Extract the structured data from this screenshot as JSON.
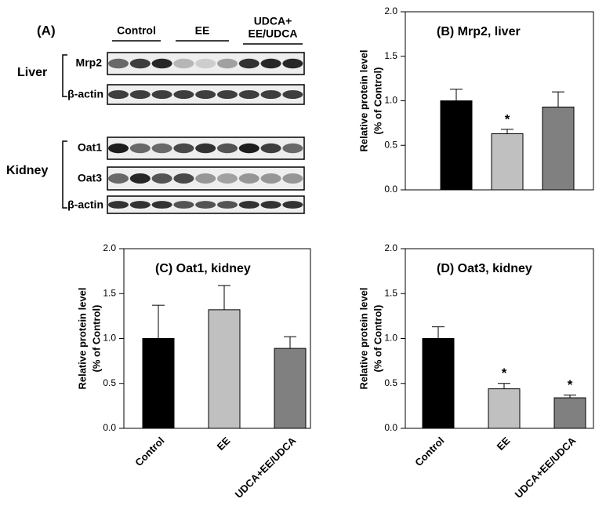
{
  "blot": {
    "label": "(A)",
    "groups": [
      [
        "Control"
      ],
      [
        "EE"
      ],
      [
        "UDCA+",
        "EE/UDCA"
      ]
    ],
    "tissues": [
      "Liver",
      "Kidney"
    ],
    "proteins": [
      "Mrp2",
      "β-actin",
      "Oat1",
      "Oat3",
      "β-actin"
    ]
  },
  "chart_data": [
    {
      "type": "bar",
      "title": "(B) Mrp2, liver",
      "ylabel": [
        "Relative protein level",
        "(% of Control)"
      ],
      "categories": [
        null,
        null,
        null
      ],
      "values": [
        1.0,
        0.63,
        0.93
      ],
      "errors": [
        0.13,
        0.05,
        0.17
      ],
      "colors": [
        "#000000",
        "#c0c0c0",
        "#808080"
      ],
      "annotations": [
        null,
        "*",
        null
      ],
      "ylim": [
        0,
        2
      ],
      "yticks": [
        {
          "value": 0,
          "label": "0.0"
        },
        0.5,
        {
          "value": 1,
          "label": "1.0"
        },
        1.5,
        {
          "value": 2,
          "label": "2.0"
        }
      ]
    },
    {
      "type": "bar",
      "title": "(C) Oat1, kidney",
      "ylabel": [
        "Relative protein level",
        "(% of Control)"
      ],
      "categories": [
        "Control",
        "EE",
        "UDCA+EE/UDCA"
      ],
      "values": [
        1.0,
        1.32,
        0.89
      ],
      "errors": [
        0.37,
        0.27,
        0.13
      ],
      "colors": [
        "#000000",
        "#c0c0c0",
        "#808080"
      ],
      "annotations": [
        null,
        null,
        null
      ],
      "ylim": [
        0,
        2
      ],
      "yticks": [
        {
          "value": 0,
          "label": "0.0"
        },
        0.5,
        {
          "value": 1,
          "label": "1.0"
        },
        1.5,
        {
          "value": 2,
          "label": "2.0"
        }
      ]
    },
    {
      "type": "bar",
      "title": "(D) Oat3, kidney",
      "ylabel": [
        "Relative protein level",
        "(% of Control)"
      ],
      "categories": [
        "Control",
        "EE",
        "UDCA+EE/UDCA"
      ],
      "values": [
        1.0,
        0.44,
        0.34
      ],
      "errors": [
        0.13,
        0.06,
        0.03
      ],
      "colors": [
        "#000000",
        "#c0c0c0",
        "#808080"
      ],
      "annotations": [
        null,
        "*",
        "*"
      ],
      "ylim": [
        0,
        2
      ],
      "yticks": [
        {
          "value": 0,
          "label": "0.0"
        },
        0.5,
        {
          "value": 1,
          "label": "1.0"
        },
        1.5,
        {
          "value": 2,
          "label": "2.0"
        }
      ]
    }
  ]
}
